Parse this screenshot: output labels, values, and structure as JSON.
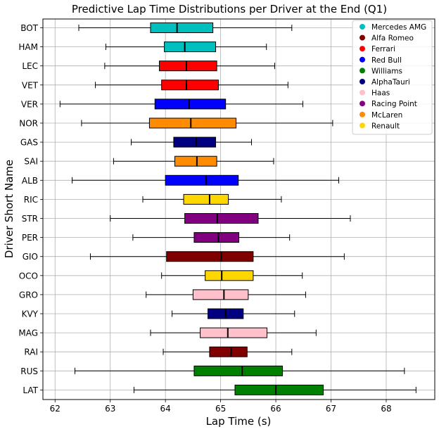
{
  "chart_data": {
    "type": "boxplot",
    "title": "Predictive Lap Time Distributions per Driver at the End (Q1)",
    "xlabel": "Lap Time (s)",
    "ylabel": "Driver Short Name",
    "xlim": [
      61.78,
      68.88
    ],
    "xticks": [
      62,
      63,
      64,
      65,
      66,
      67,
      68
    ],
    "grid": true,
    "legend_position": "top-right",
    "legend": [
      {
        "name": "Mercedes AMG",
        "color": "#00BFBF"
      },
      {
        "name": "Alfa Romeo",
        "color": "#800000"
      },
      {
        "name": "Ferrari",
        "color": "#FF0000"
      },
      {
        "name": "Red Bull",
        "color": "#0000FF"
      },
      {
        "name": "Williams",
        "color": "#008000"
      },
      {
        "name": "AlphaTauri",
        "color": "#000080"
      },
      {
        "name": "Haas",
        "color": "#FFC0CB"
      },
      {
        "name": "Racing Point",
        "color": "#800080"
      },
      {
        "name": "McLaren",
        "color": "#FF8C00"
      },
      {
        "name": "Renault",
        "color": "#FFD700"
      }
    ],
    "drivers": [
      {
        "label": "BOT",
        "team": "Mercedes AMG",
        "whislo": 62.43,
        "q1": 63.73,
        "med": 64.21,
        "q3": 64.86,
        "whishi": 66.29
      },
      {
        "label": "HAM",
        "team": "Mercedes AMG",
        "whislo": 62.92,
        "q1": 63.98,
        "med": 64.35,
        "q3": 64.91,
        "whishi": 65.83
      },
      {
        "label": "LEC",
        "team": "Ferrari",
        "whislo": 62.9,
        "q1": 63.89,
        "med": 64.38,
        "q3": 64.93,
        "whishi": 65.98
      },
      {
        "label": "VET",
        "team": "Ferrari",
        "whislo": 62.73,
        "q1": 63.93,
        "med": 64.38,
        "q3": 64.96,
        "whishi": 66.22
      },
      {
        "label": "VER",
        "team": "Red Bull",
        "whislo": 62.09,
        "q1": 63.81,
        "med": 64.43,
        "q3": 65.09,
        "whishi": 66.49
      },
      {
        "label": "NOR",
        "team": "McLaren",
        "whislo": 62.48,
        "q1": 63.71,
        "med": 64.46,
        "q3": 65.28,
        "whishi": 67.03
      },
      {
        "label": "GAS",
        "team": "AlphaTauri",
        "whislo": 63.38,
        "q1": 64.15,
        "med": 64.56,
        "q3": 64.91,
        "whishi": 65.56
      },
      {
        "label": "SAI",
        "team": "McLaren",
        "whislo": 63.06,
        "q1": 64.17,
        "med": 64.57,
        "q3": 64.93,
        "whishi": 65.96
      },
      {
        "label": "ALB",
        "team": "Red Bull",
        "whislo": 62.31,
        "q1": 64.0,
        "med": 64.74,
        "q3": 65.32,
        "whishi": 67.14
      },
      {
        "label": "RIC",
        "team": "Renault",
        "whislo": 63.59,
        "q1": 64.33,
        "med": 64.8,
        "q3": 65.14,
        "whishi": 66.1
      },
      {
        "label": "STR",
        "team": "Racing Point",
        "whislo": 63.0,
        "q1": 64.35,
        "med": 64.94,
        "q3": 65.68,
        "whishi": 67.35
      },
      {
        "label": "PER",
        "team": "Racing Point",
        "whislo": 63.41,
        "q1": 64.52,
        "med": 64.96,
        "q3": 65.33,
        "whishi": 66.25
      },
      {
        "label": "GIO",
        "team": "Alfa Romeo",
        "whislo": 62.64,
        "q1": 64.02,
        "med": 65.01,
        "q3": 65.59,
        "whishi": 67.24
      },
      {
        "label": "OCO",
        "team": "Renault",
        "whislo": 63.93,
        "q1": 64.72,
        "med": 65.02,
        "q3": 65.59,
        "whishi": 66.48
      },
      {
        "label": "GRO",
        "team": "Haas",
        "whislo": 63.65,
        "q1": 64.5,
        "med": 65.06,
        "q3": 65.5,
        "whishi": 66.54
      },
      {
        "label": "KVY",
        "team": "AlphaTauri",
        "whislo": 64.12,
        "q1": 64.77,
        "med": 65.09,
        "q3": 65.41,
        "whishi": 66.34
      },
      {
        "label": "MAG",
        "team": "Haas",
        "whislo": 63.73,
        "q1": 64.63,
        "med": 65.13,
        "q3": 65.84,
        "whishi": 66.73
      },
      {
        "label": "RAI",
        "team": "Alfa Romeo",
        "whislo": 63.96,
        "q1": 64.8,
        "med": 65.19,
        "q3": 65.48,
        "whishi": 66.29
      },
      {
        "label": "RUS",
        "team": "Williams",
        "whislo": 62.36,
        "q1": 64.52,
        "med": 65.39,
        "q3": 66.12,
        "whishi": 68.33
      },
      {
        "label": "LAT",
        "team": "Williams",
        "whislo": 63.43,
        "q1": 65.26,
        "med": 66.0,
        "q3": 66.86,
        "whishi": 68.54
      }
    ]
  }
}
